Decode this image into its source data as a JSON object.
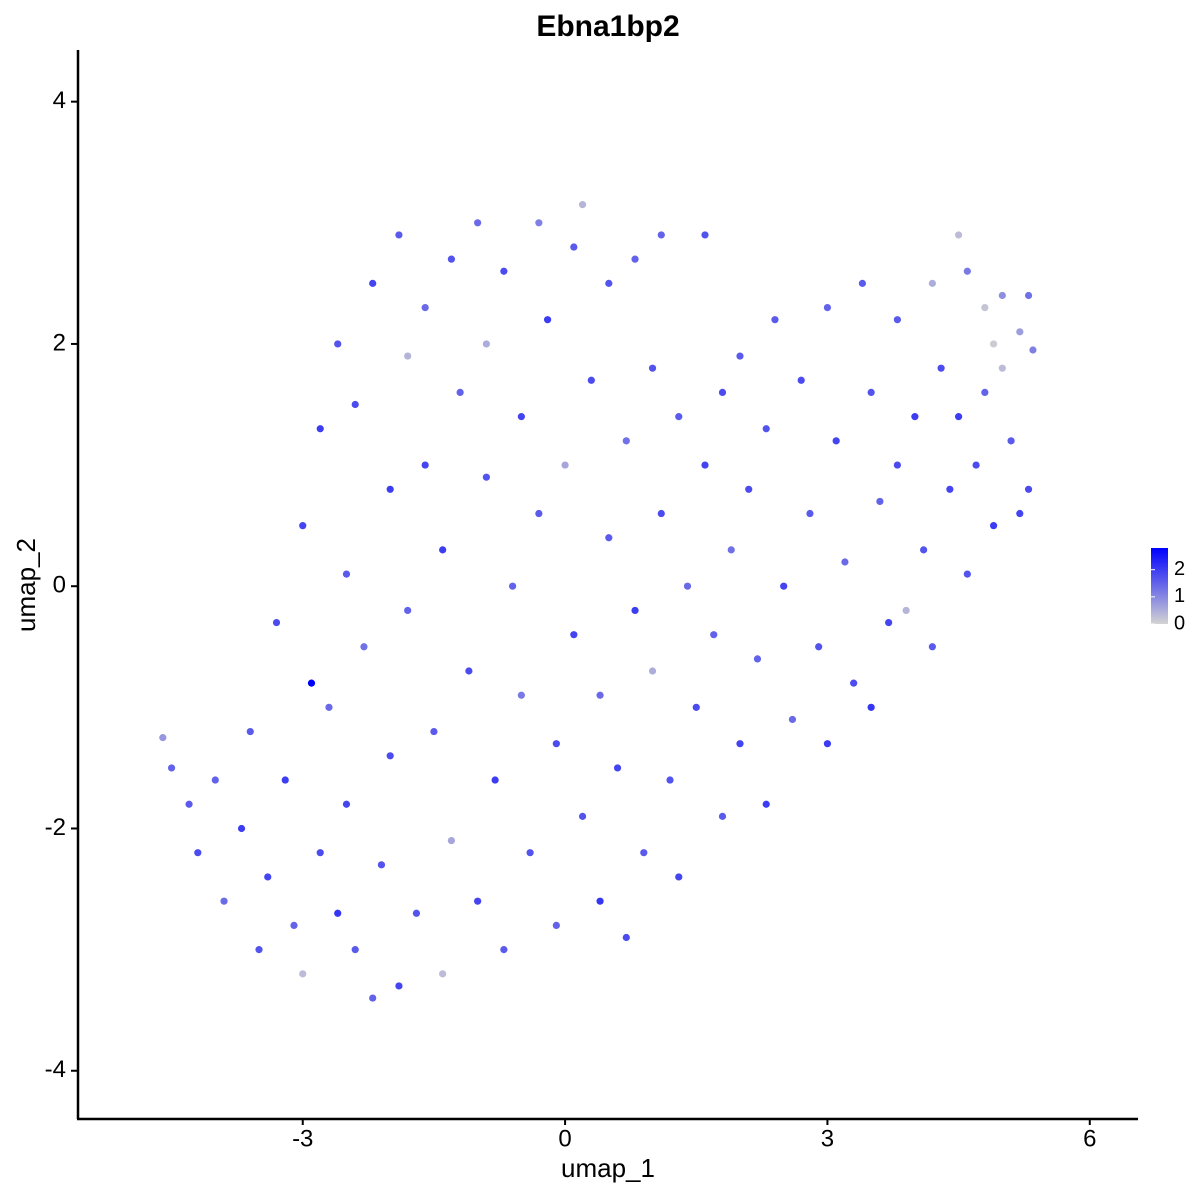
{
  "chart_data": {
    "type": "scatter",
    "title": "Ebna1bp2",
    "xlabel": "umap_1",
    "ylabel": "umap_2",
    "xlim": [
      -5.57,
      6.54
    ],
    "ylim": [
      -4.39,
      4.41
    ],
    "xticks": [
      -3,
      0,
      3,
      6
    ],
    "yticks": [
      -4,
      -2,
      0,
      2,
      4
    ],
    "color_low": "#d3d3d3",
    "color_high": "#0000ff",
    "color_range": [
      0,
      2.8
    ],
    "colorbar_ticks": [
      0,
      1,
      2
    ],
    "x": [
      -4.6,
      -4.5,
      -4.2,
      -4.0,
      -3.9,
      -3.7,
      -3.6,
      -3.5,
      -3.4,
      -3.3,
      -3.2,
      -3.1,
      -3.0,
      -3.0,
      -2.9,
      -2.8,
      -2.8,
      -2.7,
      -2.6,
      -2.6,
      -2.5,
      -2.5,
      -2.4,
      -2.4,
      -2.3,
      -2.2,
      -2.2,
      -2.1,
      -2.0,
      -2.0,
      -1.9,
      -1.9,
      -1.8,
      -1.8,
      -1.7,
      -1.6,
      -1.6,
      -1.5,
      -1.4,
      -1.4,
      -1.3,
      -1.3,
      -1.2,
      -1.1,
      -1.0,
      -1.0,
      -0.9,
      -0.9,
      -0.8,
      -0.7,
      -0.7,
      -0.6,
      -0.5,
      -0.5,
      -0.4,
      -0.3,
      -0.3,
      -0.2,
      -0.1,
      -0.1,
      0.0,
      0.1,
      0.1,
      0.2,
      0.2,
      0.3,
      0.4,
      0.4,
      0.5,
      0.5,
      0.6,
      0.7,
      0.7,
      0.8,
      0.8,
      0.9,
      1.0,
      1.0,
      1.1,
      1.1,
      1.2,
      1.3,
      1.3,
      1.4,
      1.5,
      1.6,
      1.6,
      1.7,
      1.8,
      1.8,
      1.9,
      2.0,
      2.0,
      2.1,
      2.2,
      2.3,
      2.3,
      2.4,
      2.5,
      2.6,
      2.7,
      2.8,
      2.9,
      3.0,
      3.0,
      3.1,
      3.2,
      3.3,
      3.4,
      3.5,
      3.5,
      3.6,
      3.7,
      3.8,
      3.8,
      3.9,
      4.0,
      4.1,
      4.2,
      4.2,
      4.3,
      4.4,
      4.5,
      4.5,
      4.6,
      4.6,
      4.7,
      4.8,
      4.8,
      4.9,
      4.9,
      5.0,
      5.0,
      5.1,
      5.2,
      5.2,
      5.3,
      5.35,
      5.3,
      -4.3
    ],
    "y": [
      -1.25,
      -1.5,
      -2.2,
      -1.6,
      -2.6,
      -2.0,
      -1.2,
      -3.0,
      -2.4,
      -0.3,
      -1.6,
      -2.8,
      -3.2,
      0.5,
      -0.8,
      1.3,
      -2.2,
      -1.0,
      2.0,
      -2.7,
      0.1,
      -1.8,
      1.5,
      -3.0,
      -0.5,
      2.5,
      -3.4,
      -2.3,
      0.8,
      -1.4,
      2.9,
      -3.3,
      1.9,
      -0.2,
      -2.7,
      2.3,
      1.0,
      -1.2,
      -3.2,
      0.3,
      2.7,
      -2.1,
      1.6,
      -0.7,
      3.0,
      -2.6,
      2.0,
      0.9,
      -1.6,
      -3.0,
      2.6,
      0.0,
      1.4,
      -0.9,
      -2.2,
      3.0,
      0.6,
      2.2,
      -1.3,
      -2.8,
      1.0,
      -0.4,
      2.8,
      3.15,
      -1.9,
      1.7,
      -0.9,
      -2.6,
      0.4,
      2.5,
      -1.5,
      1.2,
      -2.9,
      2.7,
      -0.2,
      -2.2,
      1.8,
      -0.7,
      2.9,
      0.6,
      -1.6,
      -2.4,
      1.4,
      0.0,
      -1.0,
      2.9,
      1.0,
      -0.4,
      -1.9,
      1.6,
      0.3,
      -1.3,
      1.9,
      0.8,
      -0.6,
      -1.8,
      1.3,
      2.2,
      0.0,
      -1.1,
      1.7,
      0.6,
      -0.5,
      2.3,
      -1.3,
      1.2,
      0.2,
      -0.8,
      2.5,
      1.6,
      -1.0,
      0.7,
      -0.3,
      2.2,
      1.0,
      -0.2,
      1.4,
      0.3,
      2.5,
      -0.5,
      1.8,
      0.8,
      2.9,
      1.4,
      2.6,
      0.1,
      1.0,
      2.3,
      1.6,
      2.0,
      0.5,
      1.8,
      2.4,
      1.2,
      2.1,
      0.6,
      2.4,
      1.95,
      0.8,
      -1.8
    ],
    "values": [
      0.8,
      1.5,
      1.8,
      1.5,
      1.4,
      2.0,
      1.6,
      1.7,
      1.9,
      1.8,
      2.0,
      1.5,
      0.3,
      1.9,
      2.8,
      2.0,
      1.8,
      1.4,
      1.7,
      2.1,
      1.6,
      1.9,
      1.8,
      1.6,
      1.3,
      1.9,
      1.5,
      1.7,
      2.0,
      1.8,
      1.6,
      1.9,
      0.4,
      1.5,
      1.7,
      1.4,
      1.9,
      1.6,
      0.3,
      2.0,
      1.7,
      0.6,
      1.5,
      1.8,
      1.4,
      1.9,
      0.5,
      1.7,
      2.0,
      1.6,
      1.8,
      1.5,
      1.9,
      1.2,
      1.7,
      1.1,
      1.6,
      2.0,
      1.8,
      1.5,
      0.6,
      1.9,
      1.6,
      0.4,
      1.7,
      1.8,
      1.4,
      2.1,
      1.6,
      1.7,
      1.9,
      1.3,
      1.8,
      1.5,
      2.0,
      1.6,
      1.7,
      0.5,
      1.5,
      1.8,
      1.7,
      1.9,
      1.6,
      1.4,
      1.8,
      1.7,
      1.9,
      1.5,
      1.6,
      1.8,
      1.3,
      1.9,
      1.6,
      1.8,
      1.5,
      2.0,
      1.7,
      1.6,
      1.9,
      1.4,
      1.8,
      1.6,
      1.7,
      1.5,
      2.0,
      1.9,
      1.4,
      1.8,
      1.6,
      1.7,
      2.1,
      1.5,
      1.9,
      1.6,
      1.8,
      0.4,
      2.0,
      1.7,
      0.5,
      1.6,
      1.8,
      1.9,
      0.3,
      2.0,
      1.2,
      1.7,
      1.8,
      0.2,
      1.5,
      0.1,
      2.0,
      0.3,
      0.9,
      1.6,
      0.7,
      1.9,
      1.3,
      1.1,
      1.8,
      1.6
    ]
  }
}
